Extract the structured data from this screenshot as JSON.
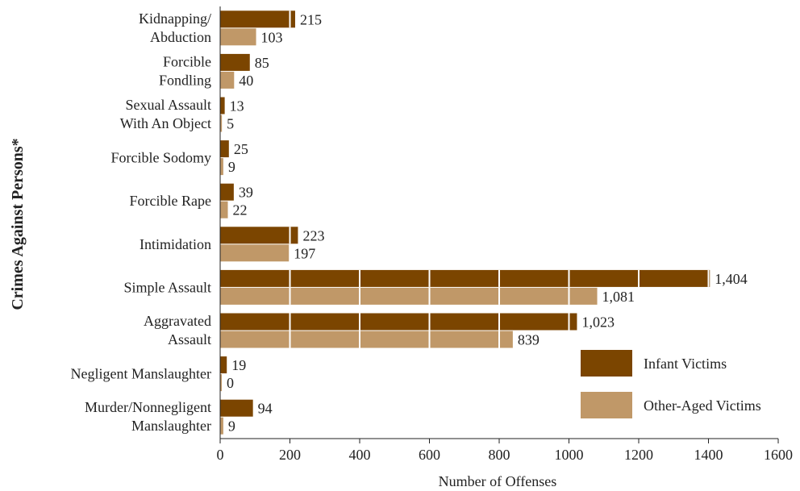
{
  "chart_data": {
    "type": "bar",
    "orientation": "horizontal",
    "categories": [
      [
        "Kidnapping/",
        "Abduction"
      ],
      [
        "Forcible",
        "Fondling"
      ],
      [
        "Sexual Assault",
        "With An Object"
      ],
      [
        "Forcible Sodomy"
      ],
      [
        "Forcible Rape"
      ],
      [
        "Intimidation"
      ],
      [
        "Simple Assault"
      ],
      [
        "Aggravated",
        "Assault"
      ],
      [
        "Negligent Manslaughter"
      ],
      [
        "Murder/Nonnegligent",
        "Manslaughter"
      ]
    ],
    "series": [
      {
        "name": "Infant Victims",
        "color": "#7b4500",
        "values": [
          215,
          85,
          13,
          25,
          39,
          223,
          1404,
          1023,
          19,
          94
        ],
        "labels": [
          "215",
          "85",
          "13",
          "25",
          "39",
          "223",
          "1,404",
          "1,023",
          "19",
          "94"
        ]
      },
      {
        "name": "Other-Aged Victims",
        "color": "#c09868",
        "values": [
          103,
          40,
          5,
          9,
          22,
          197,
          1081,
          839,
          0,
          9
        ],
        "labels": [
          "103",
          "40",
          "5",
          "9",
          "22",
          "197",
          "1,081",
          "839",
          "0",
          "9"
        ]
      }
    ],
    "xlabel": "Number of Offenses",
    "ylabel": "Crimes Against Persons*",
    "xlim": [
      0,
      1600
    ],
    "xticks": [
      0,
      200,
      400,
      600,
      800,
      1000,
      1200,
      1400,
      1600
    ],
    "grid": "vertical white lines inside bars",
    "legend_position": "lower-right"
  }
}
